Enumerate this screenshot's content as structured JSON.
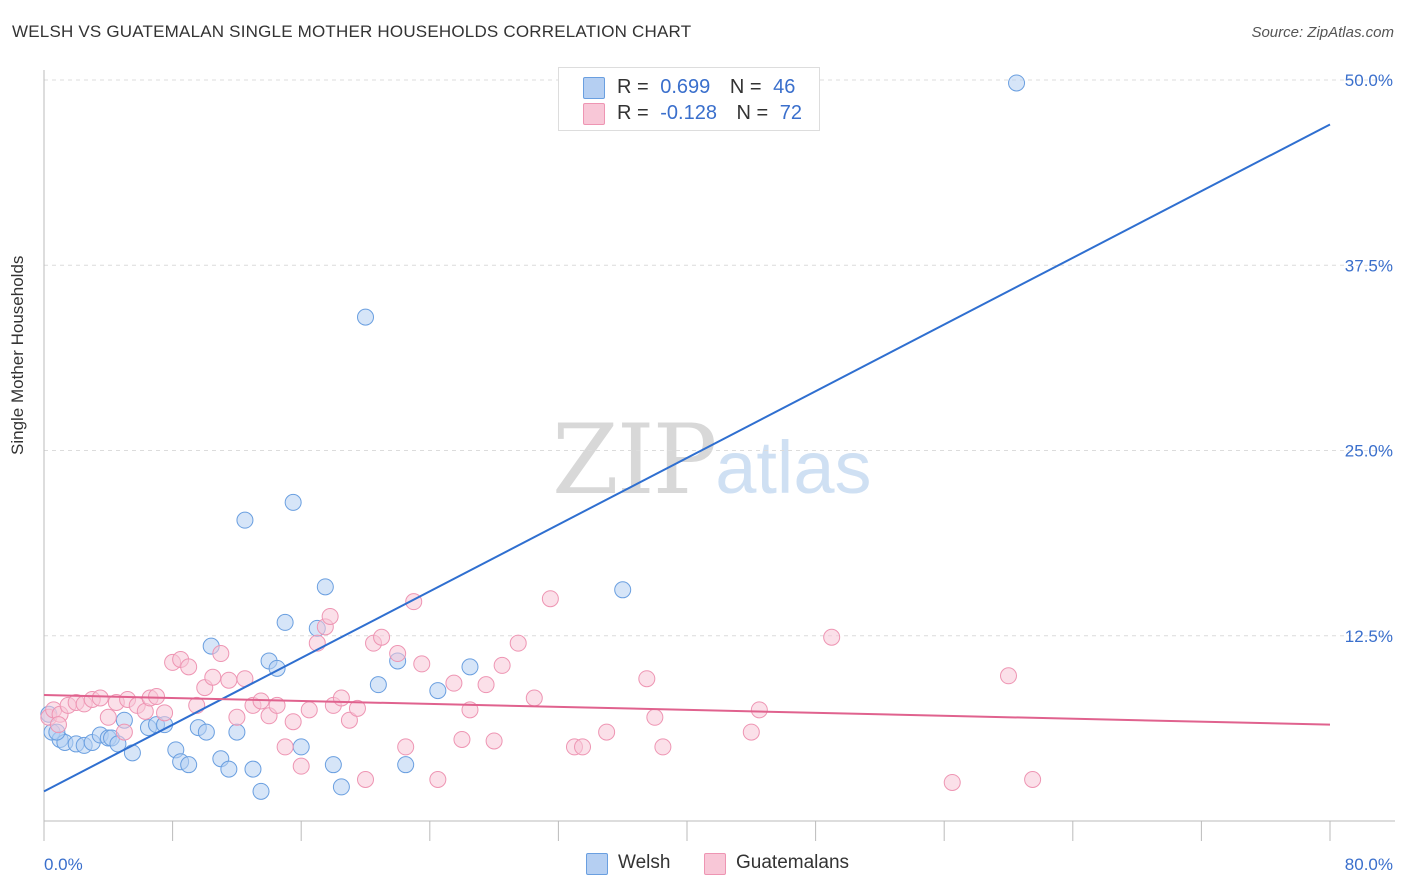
{
  "title": "WELSH VS GUATEMALAN SINGLE MOTHER HOUSEHOLDS CORRELATION CHART",
  "source": "Source: ZipAtlas.com",
  "watermark": {
    "zip": "ZIP",
    "atlas": "atlas"
  },
  "legend": {
    "welsh": {
      "r_label": "R =",
      "r_value": "0.699",
      "n_label": "N =",
      "n_value": "46",
      "color": "#a9c8ef"
    },
    "guatemalans": {
      "r_label": "R =",
      "r_value": "-0.128",
      "n_label": "N =",
      "n_value": "72",
      "color": "#f5b8cc"
    }
  },
  "bottom_legend": {
    "welsh": "Welsh",
    "guatemalans": "Guatemalans"
  },
  "chart_data": {
    "type": "scatter",
    "title": "WELSH VS GUATEMALAN SINGLE MOTHER HOUSEHOLDS CORRELATION CHART",
    "xlabel": "",
    "ylabel": "Single Mother Households",
    "xlim": [
      0,
      80
    ],
    "ylim": [
      0,
      52
    ],
    "x_tick_labels": [
      "0.0%",
      "80.0%"
    ],
    "y_ticks": [
      12.5,
      25.0,
      37.5,
      50.0
    ],
    "y_tick_labels": [
      "12.5%",
      "25.0%",
      "37.5%",
      "50.0%"
    ],
    "grid": true,
    "series": [
      {
        "name": "Welsh",
        "color": "#6a9fe0",
        "fill": "#b5cff2",
        "trend": {
          "x": [
            0,
            80
          ],
          "y": [
            2.0,
            47.0
          ],
          "color": "#2f6fd0"
        },
        "points": [
          [
            0.3,
            7.2
          ],
          [
            0.5,
            6.0
          ],
          [
            1.0,
            5.5
          ],
          [
            1.3,
            5.3
          ],
          [
            2.0,
            5.2
          ],
          [
            2.5,
            5.1
          ],
          [
            3.0,
            5.3
          ],
          [
            3.5,
            5.8
          ],
          [
            4.0,
            5.6
          ],
          [
            4.2,
            5.6
          ],
          [
            4.6,
            5.2
          ],
          [
            5.0,
            6.8
          ],
          [
            5.5,
            4.6
          ],
          [
            6.5,
            6.3
          ],
          [
            7.0,
            6.5
          ],
          [
            7.5,
            6.5
          ],
          [
            8.2,
            4.8
          ],
          [
            8.5,
            4.0
          ],
          [
            9.0,
            3.8
          ],
          [
            9.6,
            6.3
          ],
          [
            10.1,
            6.0
          ],
          [
            10.4,
            11.8
          ],
          [
            11.0,
            4.2
          ],
          [
            11.5,
            3.5
          ],
          [
            12.0,
            6.0
          ],
          [
            12.5,
            20.3
          ],
          [
            13.0,
            3.5
          ],
          [
            13.5,
            2.0
          ],
          [
            14.0,
            10.8
          ],
          [
            14.5,
            10.3
          ],
          [
            15.0,
            13.4
          ],
          [
            15.5,
            21.5
          ],
          [
            16.0,
            5.0
          ],
          [
            17.0,
            13.0
          ],
          [
            17.5,
            15.8
          ],
          [
            18.0,
            3.8
          ],
          [
            18.5,
            2.3
          ],
          [
            20.0,
            34.0
          ],
          [
            20.8,
            9.2
          ],
          [
            22.0,
            10.8
          ],
          [
            22.5,
            3.8
          ],
          [
            24.5,
            8.8
          ],
          [
            26.5,
            10.4
          ],
          [
            36.0,
            15.6
          ],
          [
            60.5,
            49.8
          ],
          [
            0.8,
            6.0
          ]
        ]
      },
      {
        "name": "Guatemalans",
        "color": "#ee95b3",
        "fill": "#f8c7d7",
        "trend": {
          "x": [
            0,
            80
          ],
          "y": [
            8.5,
            6.5
          ],
          "color": "#e0628e"
        },
        "points": [
          [
            0.3,
            7.0
          ],
          [
            0.6,
            7.5
          ],
          [
            1.0,
            7.2
          ],
          [
            1.5,
            7.8
          ],
          [
            2.0,
            8.0
          ],
          [
            2.5,
            7.9
          ],
          [
            3.0,
            8.2
          ],
          [
            3.5,
            8.3
          ],
          [
            4.0,
            7.0
          ],
          [
            4.5,
            8.0
          ],
          [
            5.0,
            6.0
          ],
          [
            5.2,
            8.2
          ],
          [
            5.8,
            7.8
          ],
          [
            6.3,
            7.4
          ],
          [
            6.6,
            8.3
          ],
          [
            7.0,
            8.4
          ],
          [
            7.5,
            7.3
          ],
          [
            8.0,
            10.7
          ],
          [
            8.5,
            10.9
          ],
          [
            9.0,
            10.4
          ],
          [
            9.5,
            7.8
          ],
          [
            10.0,
            9.0
          ],
          [
            10.5,
            9.7
          ],
          [
            11.0,
            11.3
          ],
          [
            11.5,
            9.5
          ],
          [
            12.0,
            7.0
          ],
          [
            12.5,
            9.6
          ],
          [
            13.0,
            7.8
          ],
          [
            13.5,
            8.1
          ],
          [
            14.0,
            7.1
          ],
          [
            14.5,
            7.8
          ],
          [
            15.0,
            5.0
          ],
          [
            15.5,
            6.7
          ],
          [
            16.0,
            3.7
          ],
          [
            16.5,
            7.5
          ],
          [
            17.0,
            12.0
          ],
          [
            17.5,
            13.1
          ],
          [
            17.8,
            13.8
          ],
          [
            18.0,
            7.8
          ],
          [
            18.5,
            8.3
          ],
          [
            19.0,
            6.8
          ],
          [
            19.5,
            7.6
          ],
          [
            20.0,
            2.8
          ],
          [
            20.5,
            12.0
          ],
          [
            21.0,
            12.4
          ],
          [
            22.0,
            11.3
          ],
          [
            22.5,
            5.0
          ],
          [
            23.0,
            14.8
          ],
          [
            23.5,
            10.6
          ],
          [
            24.5,
            2.8
          ],
          [
            25.5,
            9.3
          ],
          [
            26.0,
            5.5
          ],
          [
            26.5,
            7.5
          ],
          [
            27.5,
            9.2
          ],
          [
            28.0,
            5.4
          ],
          [
            28.5,
            10.5
          ],
          [
            29.5,
            12.0
          ],
          [
            30.5,
            8.3
          ],
          [
            31.5,
            15.0
          ],
          [
            33.0,
            5.0
          ],
          [
            33.5,
            5.0
          ],
          [
            35.0,
            6.0
          ],
          [
            37.5,
            9.6
          ],
          [
            38.0,
            7.0
          ],
          [
            38.5,
            5.0
          ],
          [
            44.0,
            6.0
          ],
          [
            44.5,
            7.5
          ],
          [
            49.0,
            12.4
          ],
          [
            56.5,
            2.6
          ],
          [
            60.0,
            9.8
          ],
          [
            61.5,
            2.8
          ],
          [
            0.9,
            6.5
          ]
        ]
      }
    ]
  }
}
